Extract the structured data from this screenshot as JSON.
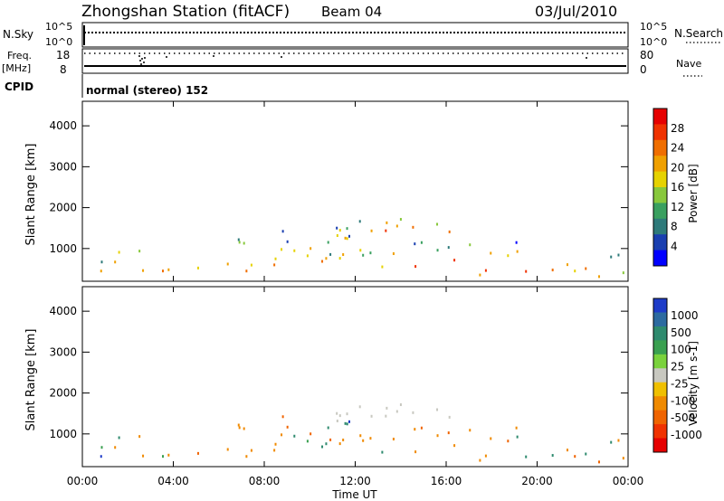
{
  "header": {
    "station": "Zhongshan Station (fitACF)",
    "beam": "Beam 04",
    "date": "03/Jul/2010"
  },
  "status_panels": {
    "nsky_label": "N.Sky",
    "nsky_ticks": [
      "10^5",
      "10^0"
    ],
    "nsearch_label": "N.Search",
    "nsearch_ticks": [
      "10^5",
      "10^0"
    ],
    "freq_label": "Freq.",
    "freq_unit": "[MHz]",
    "freq_ticks": [
      "18",
      "8"
    ],
    "nave_label": "Nave",
    "nave_ticks": [
      "80",
      "0"
    ],
    "cpid_label": "CPID",
    "cpid_text": "normal (stereo) 152"
  },
  "chart_data": [
    {
      "type": "heatmap",
      "quantity": "Power",
      "ylabel": "Slant Range [km]",
      "xlabel": "",
      "xlim": [
        0,
        24
      ],
      "ylim": [
        200,
        4600
      ],
      "yticks": [
        "1000",
        "2000",
        "3000",
        "4000"
      ],
      "colorbar": {
        "label": "Power [dB]",
        "ticks": [
          "4",
          "8",
          "12",
          "16",
          "20",
          "24",
          "28"
        ],
        "colors": [
          "#0000ff",
          "#1a3fb0",
          "#2e7a7a",
          "#3aa060",
          "#88c83c",
          "#e6d200",
          "#f0a000",
          "#f06e00",
          "#f03200",
          "#e60000"
        ]
      }
    },
    {
      "type": "heatmap",
      "quantity": "Velocity",
      "ylabel": "Slant Range [km]",
      "xlabel": "Time UT",
      "xlim": [
        0,
        24
      ],
      "ylim": [
        200,
        4600
      ],
      "yticks": [
        "1000",
        "2000",
        "3000",
        "4000"
      ],
      "xticks": [
        "00:00",
        "04:00",
        "08:00",
        "12:00",
        "16:00",
        "20:00",
        "00:00"
      ],
      "colorbar": {
        "label": "Velocity [m s-1]",
        "ticks": [
          "1000",
          "500",
          "100",
          "25",
          "-25",
          "-100",
          "-500",
          "-1000"
        ],
        "colors": [
          "#1e3cc8",
          "#2c6aa0",
          "#2e8a6e",
          "#3aa050",
          "#7ad23c",
          "#c8c8c0",
          "#f0c000",
          "#f08a00",
          "#f06400",
          "#f03200",
          "#e60000"
        ]
      }
    }
  ]
}
